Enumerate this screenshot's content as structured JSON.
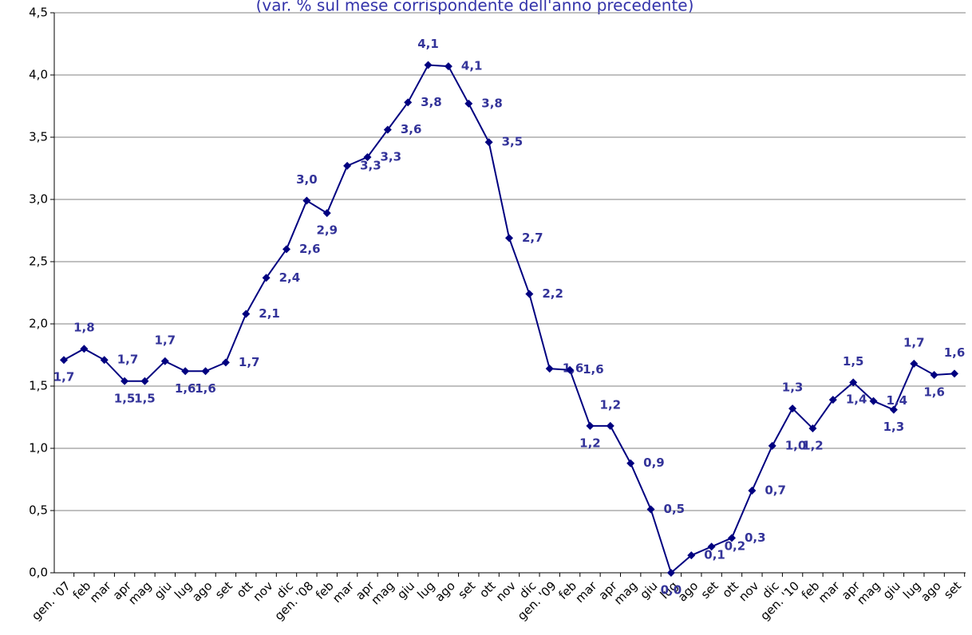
{
  "chart_data": {
    "type": "line",
    "subtitle": "(var. % sul mese corrispondente dell'anno precedente)",
    "categories": [
      "gen. '07",
      "feb",
      "mar",
      "apr",
      "mag",
      "giu",
      "lug",
      "ago",
      "set",
      "ott",
      "nov",
      "dic",
      "gen. '08",
      "feb",
      "mar",
      "apr",
      "mag",
      "giu",
      "lug",
      "ago",
      "set",
      "ott",
      "nov",
      "dic",
      "gen. '09",
      "feb",
      "mar",
      "apr",
      "mag",
      "giu",
      "lug",
      "ago",
      "set",
      "ott",
      "nov",
      "dic",
      "gen. '10",
      "feb",
      "mar",
      "apr",
      "mag",
      "giu",
      "lug",
      "ago",
      "set"
    ],
    "series": [
      {
        "name": "var. %",
        "color": "#000080",
        "values": [
          1.71,
          1.8,
          1.71,
          1.54,
          1.54,
          1.7,
          1.62,
          1.62,
          1.69,
          2.08,
          2.37,
          2.6,
          2.99,
          2.89,
          3.27,
          3.34,
          3.56,
          3.78,
          4.08,
          4.07,
          3.77,
          3.46,
          2.69,
          2.24,
          1.64,
          1.63,
          1.18,
          1.18,
          0.88,
          0.51,
          0.0,
          0.14,
          0.21,
          0.28,
          0.66,
          1.02,
          1.32,
          1.16,
          1.39,
          1.53,
          1.38,
          1.31,
          1.68,
          1.59,
          1.6
        ],
        "value_labels": [
          "1,7",
          "1,8",
          "1,7",
          "1,5",
          "1,5",
          "1,7",
          "1,6",
          "1,6",
          "1,7",
          "2,1",
          "2,4",
          "2,6",
          "3,0",
          "2,9",
          "3,3",
          "3,3",
          "3,6",
          "3,8",
          "4,1",
          "4,1",
          "3,8",
          "3,5",
          "2,7",
          "2,2",
          "1,6",
          "1,6",
          "1,2",
          "1,2",
          "0,9",
          "0,5",
          "0,0",
          "0,1",
          "0,2",
          "0,3",
          "0,7",
          "1,0",
          "1,3",
          "1,2",
          "1,4",
          "1,5",
          "1,4",
          "1,3",
          "1,7",
          "1,6",
          "1,6"
        ]
      }
    ],
    "ylim": [
      0,
      4.5
    ],
    "yticks": [
      {
        "value": 0,
        "label": "0,0"
      },
      {
        "value": 0.5,
        "label": "0,5"
      },
      {
        "value": 1,
        "label": "1,0"
      },
      {
        "value": 1.5,
        "label": "1,5"
      },
      {
        "value": 2,
        "label": "2,0"
      },
      {
        "value": 2.5,
        "label": "2,5"
      },
      {
        "value": 3,
        "label": "3,0"
      },
      {
        "value": 3.5,
        "label": "3,5"
      },
      {
        "value": 4,
        "label": "4,0"
      },
      {
        "value": 4.5,
        "label": "4,5"
      }
    ],
    "grid": true
  }
}
